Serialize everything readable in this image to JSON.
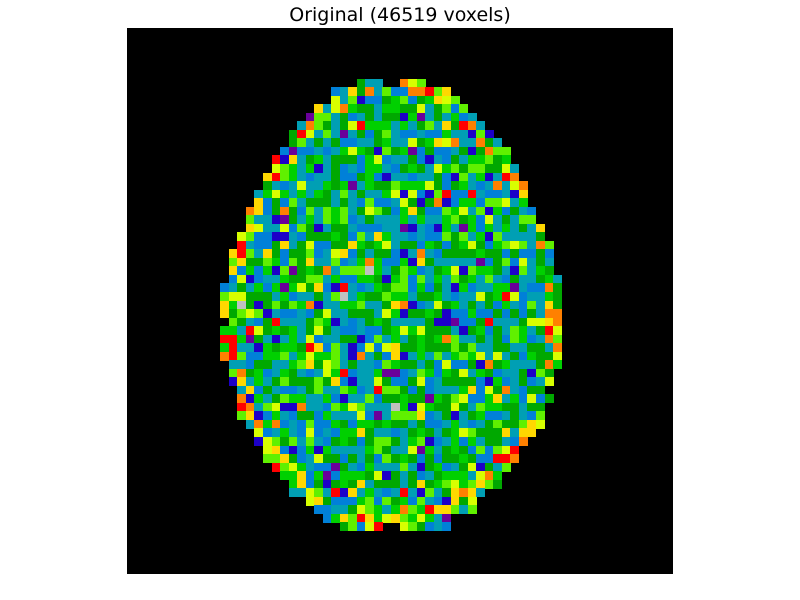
{
  "figure": {
    "title": "Original (46519 voxels)"
  },
  "image": {
    "description_kind": "axial brain slice rendered with a nipy_spectral-like colormap",
    "background_color": "#000000",
    "grid_columns": 64,
    "grid_rows": 64,
    "palette": [
      "#6a009a",
      "#1c00c8",
      "#0080d8",
      "#009fb4",
      "#00a800",
      "#00d000",
      "#60f000",
      "#d8ff00",
      "#ffd800",
      "#ff8000",
      "#ff0000",
      "#c0c0c0"
    ],
    "palette_weights": [
      2,
      4,
      16,
      22,
      20,
      16,
      9,
      5,
      2,
      1,
      1,
      0.2
    ],
    "rim_palette": [
      "#d8ff00",
      "#ffd800",
      "#ff8000",
      "#ff0000",
      "#60f000"
    ],
    "random_seed": 46519
  }
}
